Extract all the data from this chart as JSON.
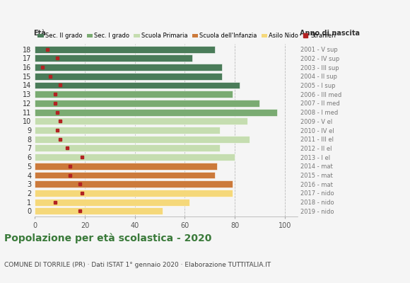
{
  "ages": [
    18,
    17,
    16,
    15,
    14,
    13,
    12,
    11,
    10,
    9,
    8,
    7,
    6,
    5,
    4,
    3,
    2,
    1,
    0
  ],
  "bar_values": [
    72,
    63,
    75,
    75,
    82,
    79,
    90,
    97,
    85,
    74,
    86,
    74,
    80,
    73,
    72,
    79,
    79,
    62,
    51
  ],
  "bar_colors": [
    "#4a7c59",
    "#4a7c59",
    "#4a7c59",
    "#4a7c59",
    "#4a7c59",
    "#7aab72",
    "#7aab72",
    "#7aab72",
    "#c5ddb0",
    "#c5ddb0",
    "#c5ddb0",
    "#c5ddb0",
    "#c5ddb0",
    "#cc7a3b",
    "#cc7a3b",
    "#cc7a3b",
    "#f5d87a",
    "#f5d87a",
    "#f5d87a"
  ],
  "stranieri_values": [
    5,
    9,
    3,
    6,
    10,
    8,
    8,
    9,
    10,
    9,
    10,
    13,
    19,
    14,
    14,
    18,
    19,
    8,
    18
  ],
  "right_labels": [
    "2001 - V sup",
    "2002 - IV sup",
    "2003 - III sup",
    "2004 - II sup",
    "2005 - I sup",
    "2006 - III med",
    "2007 - II med",
    "2008 - I med",
    "2009 - V el",
    "2010 - IV el",
    "2011 - III el",
    "2012 - II el",
    "2013 - I el",
    "2014 - mat",
    "2015 - mat",
    "2016 - mat",
    "2017 - nido",
    "2018 - nido",
    "2019 - nido"
  ],
  "xticks": [
    0,
    20,
    40,
    60,
    80,
    100
  ],
  "xlim": [
    0,
    105
  ],
  "title_main": "Popolazione per età scolastica - 2020",
  "title_sub": "COMUNE DI TORRILE (PR) · Dati ISTAT 1° gennaio 2020 · Elaborazione TUTTITALIA.IT",
  "legend_labels": [
    "Sec. II grado",
    "Sec. I grado",
    "Scuola Primaria",
    "Scuola dell'Infanzia",
    "Asilo Nido",
    "Stranieri"
  ],
  "legend_colors": [
    "#4a7c59",
    "#7aab72",
    "#c5ddb0",
    "#cc7a3b",
    "#f5d87a",
    "#b22222"
  ],
  "eta_label": "Età",
  "anno_label": "Anno di nascita",
  "bg_color": "#f5f5f5",
  "grid_color": "#bbbbbb",
  "bar_height": 0.78,
  "title_color": "#3a7a3a",
  "sub_color": "#444444"
}
